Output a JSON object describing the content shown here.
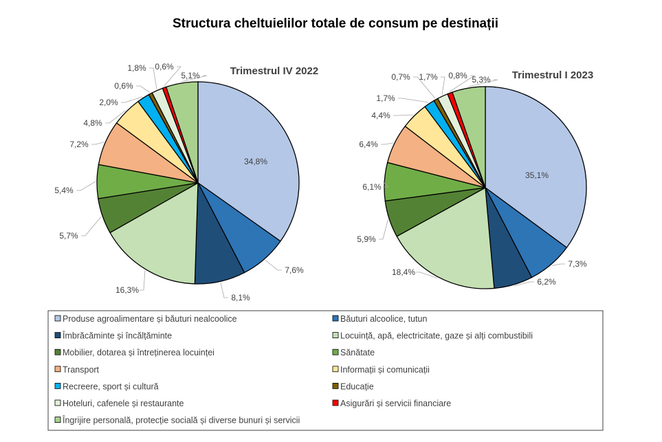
{
  "chart_data": {
    "type": "pie",
    "title": "Structura cheltuielilor totale de consum pe destinații",
    "categories": [
      "Produse agroalimentare și băuturi nealcoolice",
      "Băuturi alcoolice, tutun",
      "Îmbrăcăminte și încălțăminte",
      "Locuință, apă, electricitate, gaze și alți combustibili",
      "Mobilier, dotarea și întreținerea locuinței",
      "Sănătate",
      "Transport",
      "Informații și comunicații",
      "Recreere, sport și cultură",
      "Educație",
      "Hoteluri, cafenele și restaurante",
      "Asigurări și servicii financiare",
      "Îngrijire personală, protecție socială și diverse bunuri și servicii"
    ],
    "colors": [
      "#b4c7e7",
      "#2e75b6",
      "#1f4e79",
      "#c5e0b4",
      "#548235",
      "#70ad47",
      "#f4b183",
      "#ffe699",
      "#00b0f0",
      "#7f6000",
      "#e2efda",
      "#ff0000",
      "#a9d18e"
    ],
    "legend_position": "bottom",
    "series": [
      {
        "name": "Trimestrul IV 2022",
        "values": [
          34.8,
          7.6,
          8.1,
          16.3,
          5.7,
          5.4,
          7.2,
          4.8,
          2.0,
          0.6,
          1.8,
          0.6,
          5.1
        ],
        "labels": [
          "34,8%",
          "7,6%",
          "8,1%",
          "16,3%",
          "5,7%",
          "5,4%",
          "7,2%",
          "4,8%",
          "2,0%",
          "0,6%",
          "1,8%",
          "0,6%",
          "5,1%"
        ]
      },
      {
        "name": "Trimestrul I 2023",
        "values": [
          35.1,
          7.3,
          6.2,
          18.4,
          5.9,
          6.1,
          6.4,
          4.4,
          1.7,
          0.7,
          1.7,
          0.8,
          5.3
        ],
        "labels": [
          "35,1%",
          "7,3%",
          "6,2%",
          "18,4%",
          "5,9%",
          "6,1%",
          "6,4%",
          "4,4%",
          "1,7%",
          "0,7%",
          "1,7%",
          "0,8%",
          "5,3%"
        ]
      }
    ]
  }
}
